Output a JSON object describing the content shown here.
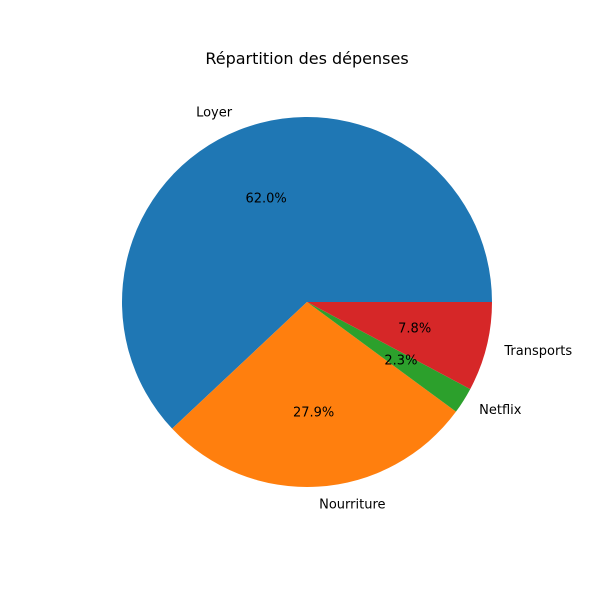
{
  "chart_data": {
    "type": "pie",
    "title": "Répartition des dépenses",
    "slices": [
      {
        "label": "Loyer",
        "percent_label": "62.0%",
        "value": 62.0,
        "color": "#1f77b4"
      },
      {
        "label": "Nourriture",
        "percent_label": "27.9%",
        "value": 27.9,
        "color": "#ff7f0e"
      },
      {
        "label": "Netflix",
        "percent_label": "2.3%",
        "value": 2.3,
        "color": "#2ca02c"
      },
      {
        "label": "Transports",
        "percent_label": "7.8%",
        "value": 7.8,
        "color": "#d62728"
      }
    ],
    "start_angle_deg": 0,
    "direction": "counterclockwise"
  }
}
